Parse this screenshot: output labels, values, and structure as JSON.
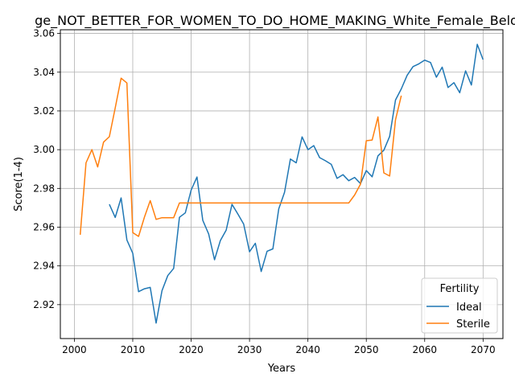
{
  "chart_data": {
    "type": "line",
    "title": "ge_NOT_BETTER_FOR_WOMEN_TO_DO_HOME_MAKING_White_Female_Below",
    "xlabel": "Years",
    "ylabel": "Score(1-4)",
    "xlim": [
      1997.6,
      2073.4
    ],
    "ylim": [
      2.9025,
      3.0619
    ],
    "xticks": [
      2000,
      2010,
      2020,
      2030,
      2040,
      2050,
      2060,
      2070
    ],
    "yticks": [
      2.92,
      2.94,
      2.96,
      2.98,
      3.0,
      3.02,
      3.04,
      3.06
    ],
    "xtick_labels": [
      "2000",
      "2010",
      "2020",
      "2030",
      "2040",
      "2050",
      "2060",
      "2070"
    ],
    "ytick_labels": [
      "2.92",
      "2.94",
      "2.96",
      "2.98",
      "3.00",
      "3.02",
      "3.04",
      "3.06"
    ],
    "grid": true,
    "legend": {
      "title": "Fertility",
      "position": "lower right"
    },
    "series": [
      {
        "name": "Ideal",
        "color": "#1f77b4",
        "x": [
          2006,
          2007,
          2008,
          2009,
          2010,
          2011,
          2012,
          2013,
          2014,
          2015,
          2016,
          2017,
          2018,
          2019,
          2020,
          2021,
          2022,
          2023,
          2024,
          2025,
          2026,
          2027,
          2028,
          2029,
          2030,
          2031,
          2032,
          2033,
          2034,
          2035,
          2036,
          2037,
          2038,
          2039,
          2040,
          2041,
          2042,
          2043,
          2044,
          2045,
          2046,
          2047,
          2048,
          2049,
          2050,
          2051,
          2052,
          2053,
          2054,
          2055,
          2056,
          2057,
          2058,
          2059,
          2060,
          2061,
          2062,
          2063,
          2064,
          2065,
          2066,
          2067,
          2068,
          2069,
          2070
        ],
        "y": [
          2.9718,
          2.965,
          2.9751,
          2.9534,
          2.9465,
          2.9267,
          2.9282,
          2.9289,
          2.9105,
          2.9272,
          2.935,
          2.9387,
          2.9651,
          2.9674,
          2.9791,
          2.9859,
          2.9635,
          2.9565,
          2.9432,
          2.953,
          2.9585,
          2.9718,
          2.9668,
          2.9616,
          2.9473,
          2.9517,
          2.9371,
          2.9476,
          2.9488,
          2.9694,
          2.978,
          2.9952,
          2.9932,
          3.0066,
          3.0,
          3.0021,
          2.9959,
          2.9943,
          2.9924,
          2.9852,
          2.9871,
          2.984,
          2.9857,
          2.9825,
          2.9892,
          2.986,
          2.9968,
          2.9997,
          3.0068,
          3.0256,
          3.0314,
          3.0384,
          3.0429,
          3.0443,
          3.0462,
          3.045,
          3.0374,
          3.0426,
          3.0321,
          3.0346,
          3.0294,
          3.0407,
          3.0334,
          3.0544,
          3.0465
        ]
      },
      {
        "name": "Sterile",
        "color": "#ff7f0e",
        "x": [
          2001,
          2002,
          2003,
          2004,
          2005,
          2006,
          2007,
          2008,
          2009,
          2010,
          2011,
          2012,
          2013,
          2014,
          2015,
          2016,
          2017,
          2018,
          2019,
          2020,
          2021,
          2022,
          2023,
          2024,
          2025,
          2026,
          2027,
          2028,
          2029,
          2030,
          2031,
          2032,
          2033,
          2034,
          2035,
          2036,
          2037,
          2038,
          2039,
          2040,
          2041,
          2042,
          2043,
          2044,
          2045,
          2046,
          2047,
          2048,
          2049,
          2050,
          2051,
          2052,
          2053,
          2054,
          2055,
          2056
        ],
        "y": [
          2.9561,
          2.9932,
          3.0,
          2.9911,
          3.0039,
          3.0067,
          3.0216,
          3.0369,
          3.0344,
          2.9572,
          2.9552,
          2.9652,
          2.9737,
          2.964,
          2.9649,
          2.9649,
          2.9649,
          2.9725,
          2.9725,
          2.9725,
          2.9725,
          2.9725,
          2.9725,
          2.9725,
          2.9725,
          2.9725,
          2.9725,
          2.9725,
          2.9725,
          2.9725,
          2.9725,
          2.9725,
          2.9725,
          2.9725,
          2.9725,
          2.9725,
          2.9725,
          2.9725,
          2.9725,
          2.9725,
          2.9725,
          2.9725,
          2.9725,
          2.9725,
          2.9725,
          2.9725,
          2.9725,
          2.9766,
          2.9822,
          3.0046,
          3.005,
          3.0169,
          2.988,
          2.9864,
          3.0154,
          3.0279
        ]
      }
    ]
  }
}
